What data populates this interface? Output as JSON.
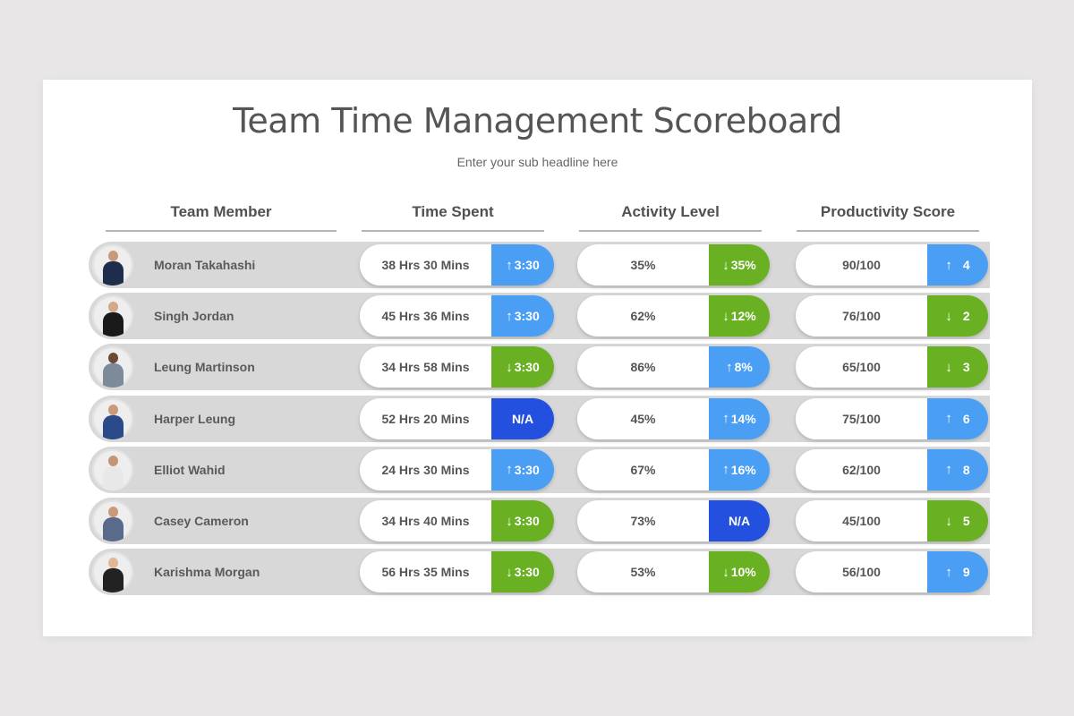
{
  "title": "Team Time Management Scoreboard",
  "subtitle": "Enter your sub headline here",
  "headers": {
    "member": "Team Member",
    "time": "Time Spent",
    "activity": "Activity Level",
    "productivity": "Productivity Score"
  },
  "colors": {
    "up": "#4a9ff5",
    "down": "#6ab023",
    "na": "#2450e0",
    "row_bg": "#d8d8d8",
    "slide_bg": "#ffffff",
    "page_bg": "#e8e6e7"
  },
  "icons": {
    "up": "↑",
    "down": "↓"
  },
  "rows": [
    {
      "name": "Moran Takahashi",
      "time": "38 Hrs 30 Mins",
      "time_dir": "up",
      "time_change": "3:30",
      "activity": "35%",
      "activity_dir": "down",
      "activity_change": "35%",
      "score": "90/100",
      "score_dir": "up",
      "score_change": "4"
    },
    {
      "name": "Singh Jordan",
      "time": "45 Hrs 36 Mins",
      "time_dir": "up",
      "time_change": "3:30",
      "activity": "62%",
      "activity_dir": "down",
      "activity_change": "12%",
      "score": "76/100",
      "score_dir": "down",
      "score_change": "2"
    },
    {
      "name": "Leung Martinson",
      "time": "34 Hrs 58 Mins",
      "time_dir": "down",
      "time_change": "3:30",
      "activity": "86%",
      "activity_dir": "up",
      "activity_change": "8%",
      "score": "65/100",
      "score_dir": "down",
      "score_change": "3"
    },
    {
      "name": "Harper Leung",
      "time": "52 Hrs 20 Mins",
      "time_dir": "na",
      "time_change": "N/A",
      "activity": "45%",
      "activity_dir": "up",
      "activity_change": "14%",
      "score": "75/100",
      "score_dir": "up",
      "score_change": "6"
    },
    {
      "name": "Elliot Wahid",
      "time": "24 Hrs 30 Mins",
      "time_dir": "up",
      "time_change": "3:30",
      "activity": "67%",
      "activity_dir": "up",
      "activity_change": "16%",
      "score": "62/100",
      "score_dir": "up",
      "score_change": "8"
    },
    {
      "name": "Casey Cameron",
      "time": "34 Hrs 40 Mins",
      "time_dir": "down",
      "time_change": "3:30",
      "activity": "73%",
      "activity_dir": "na",
      "activity_change": "N/A",
      "score": "45/100",
      "score_dir": "down",
      "score_change": "5"
    },
    {
      "name": "Karishma Morgan",
      "time": "56 Hrs 35 Mins",
      "time_dir": "down",
      "time_change": "3:30",
      "activity": "53%",
      "activity_dir": "down",
      "activity_change": "10%",
      "score": "56/100",
      "score_dir": "up",
      "score_change": "9"
    }
  ]
}
